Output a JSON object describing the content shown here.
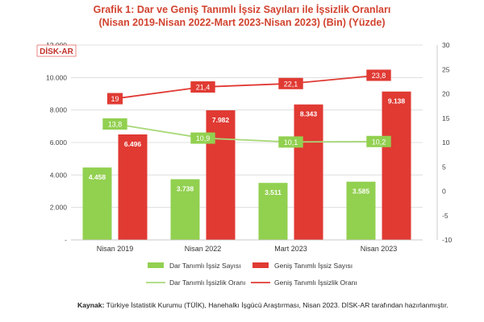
{
  "title_line1": "Grafik 1: Dar ve Geniş Tanımlı İşsiz Sayıları ile İşsizlik Oranları",
  "title_line2": "(Nisan 2019-Nisan 2022-Mart 2023-Nisan 2023) (Bin) (Yüzde)",
  "logo": "DİSK-AR",
  "source_label": "Kaynak:",
  "source_text": "Türkiye İstatistik Kurumu (TÜİK), Hanehalkı İşgücü Araştırması, Nisan 2023. DİSK-AR tarafından hazırlanmıştır.",
  "colors": {
    "dar_bar": "#92d050",
    "genis_bar": "#e03a33",
    "dar_line": "#a8d878",
    "genis_line": "#e03a33",
    "title": "#d2432f"
  },
  "chart_data": {
    "type": "bar",
    "categories": [
      "Nisan 2019",
      "Nisan 2022",
      "Mart 2023",
      "Nisan 2023"
    ],
    "left_axis": {
      "ylim": [
        0,
        12000
      ],
      "ticks": [
        0,
        2000,
        4000,
        6000,
        8000,
        10000,
        12000
      ],
      "tick_labels": [
        "-",
        "2.000",
        "4.000",
        "6.000",
        "8.000",
        "10.000",
        "12.000"
      ]
    },
    "right_axis": {
      "ylim": [
        -10,
        30
      ],
      "ticks": [
        -10,
        -5,
        0,
        5,
        10,
        15,
        20,
        25,
        30
      ],
      "tick_labels": [
        "-10",
        "-5",
        "0",
        "5",
        "10",
        "15",
        "20",
        "25",
        "30"
      ]
    },
    "series": [
      {
        "name": "Dar Tanımlı İşsiz Sayısı",
        "kind": "bar",
        "axis": "left",
        "values": [
          4458,
          3738,
          3511,
          3585
        ],
        "labels": [
          "4.458",
          "3.738",
          "3.511",
          "3.585"
        ]
      },
      {
        "name": "Geniş Tanımlı İşsiz Sayısı",
        "kind": "bar",
        "axis": "left",
        "values": [
          6496,
          7982,
          8343,
          9138
        ],
        "labels": [
          "6.496",
          "7.982",
          "8.343",
          "9.138"
        ]
      },
      {
        "name": "Dar Tanımlı İşsizlik Oranı",
        "kind": "line",
        "axis": "right",
        "values": [
          13.8,
          10.9,
          10.1,
          10.2
        ],
        "labels": [
          "13,8",
          "10,9",
          "10,1",
          "10,2"
        ]
      },
      {
        "name": "Geniş Tanımlı İşsizlik Oranı",
        "kind": "line",
        "axis": "right",
        "values": [
          19,
          21.4,
          22.1,
          23.8
        ],
        "labels": [
          "19",
          "21,4",
          "22,1",
          "23,8"
        ]
      }
    ],
    "grid": true,
    "legend": "bottom"
  }
}
